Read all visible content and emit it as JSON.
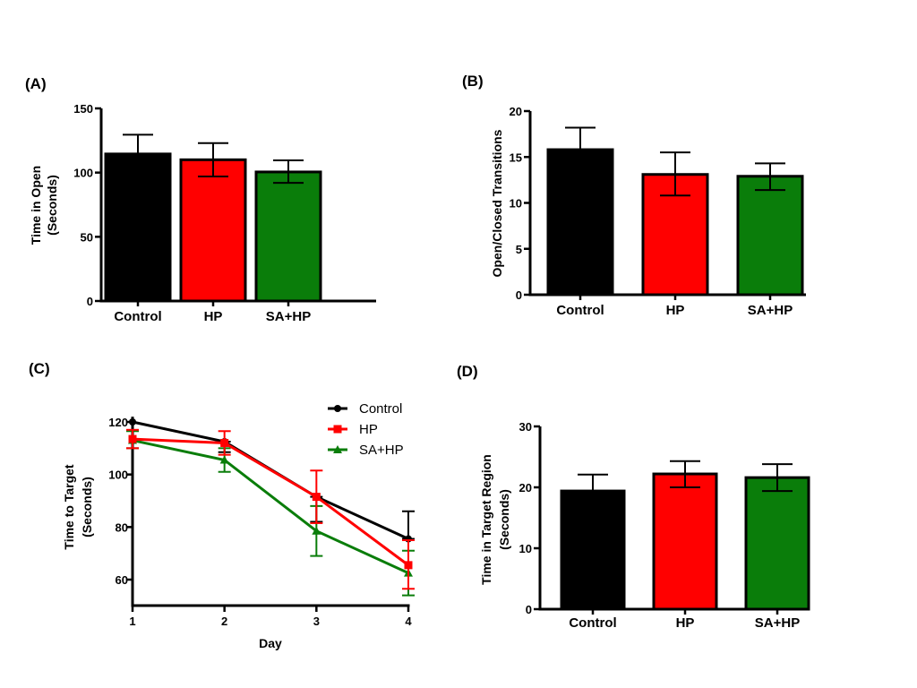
{
  "figure": {
    "colors": {
      "Control": "#000000",
      "HP": "#ff0000",
      "SA+HP": "#0a7d0a"
    }
  },
  "chart_data": [
    {
      "panel": "(A)",
      "type": "bar",
      "categories": [
        "Control",
        "HP",
        "SA+HP"
      ],
      "values": [
        114.5,
        110,
        100.5
      ],
      "error_upper": [
        129.5,
        123,
        109.5
      ],
      "error_lower": [
        null,
        97,
        92
      ],
      "ylabel_lines": [
        "Time in Open",
        "(Seconds)"
      ],
      "xlabel": "",
      "ylim": [
        0,
        150
      ],
      "yticks": [
        0,
        50,
        100,
        150
      ],
      "grid": false
    },
    {
      "panel": "(B)",
      "type": "bar",
      "categories": [
        "Control",
        "HP",
        "SA+HP"
      ],
      "values": [
        15.8,
        13.1,
        12.9
      ],
      "error_upper": [
        18.2,
        15.5,
        14.3
      ],
      "error_lower": [
        null,
        10.8,
        11.4
      ],
      "ylabel_lines": [
        "Open/Closed Transitions"
      ],
      "xlabel": "",
      "ylim": [
        0,
        20
      ],
      "yticks": [
        0,
        5,
        10,
        15,
        20
      ],
      "grid": false
    },
    {
      "panel": "(C)",
      "type": "line",
      "x": [
        1,
        2,
        3,
        4
      ],
      "xticks": [
        1,
        2,
        3,
        4
      ],
      "xlabel": "Day",
      "ylabel_lines": [
        "Time to Target",
        "(Seconds)"
      ],
      "ylim": [
        50,
        122
      ],
      "yticks": [
        60,
        80,
        100,
        120
      ],
      "legend_position": "top-right",
      "grid": false,
      "series": [
        {
          "name": "Control",
          "marker": "circle",
          "values": [
            120,
            112.5,
            91.5,
            75.5
          ],
          "error_upper": [
            120,
            112.5,
            91.5,
            86
          ],
          "error_lower": [
            120,
            108.5,
            82,
            75.5
          ]
        },
        {
          "name": "HP",
          "marker": "square",
          "values": [
            113.5,
            112,
            91.5,
            65.5
          ],
          "error_upper": [
            117,
            116.5,
            101.5,
            75
          ],
          "error_lower": [
            110,
            107.5,
            81.5,
            56.5
          ]
        },
        {
          "name": "SA+HP",
          "marker": "triangle",
          "values": [
            113,
            105.5,
            78.5,
            62.5
          ],
          "error_upper": [
            116.5,
            110,
            88,
            71
          ],
          "error_lower": [
            110,
            101,
            69,
            54
          ]
        }
      ]
    },
    {
      "panel": "(D)",
      "type": "bar",
      "categories": [
        "Control",
        "HP",
        "SA+HP"
      ],
      "values": [
        19.4,
        22.2,
        21.6
      ],
      "error_upper": [
        22.1,
        24.3,
        23.8
      ],
      "error_lower": [
        null,
        20,
        19.4
      ],
      "ylabel_lines": [
        "Time in Target Region",
        "(Seconds)"
      ],
      "xlabel": "",
      "ylim": [
        0,
        30
      ],
      "yticks": [
        0,
        10,
        20,
        30
      ],
      "grid": false
    }
  ]
}
